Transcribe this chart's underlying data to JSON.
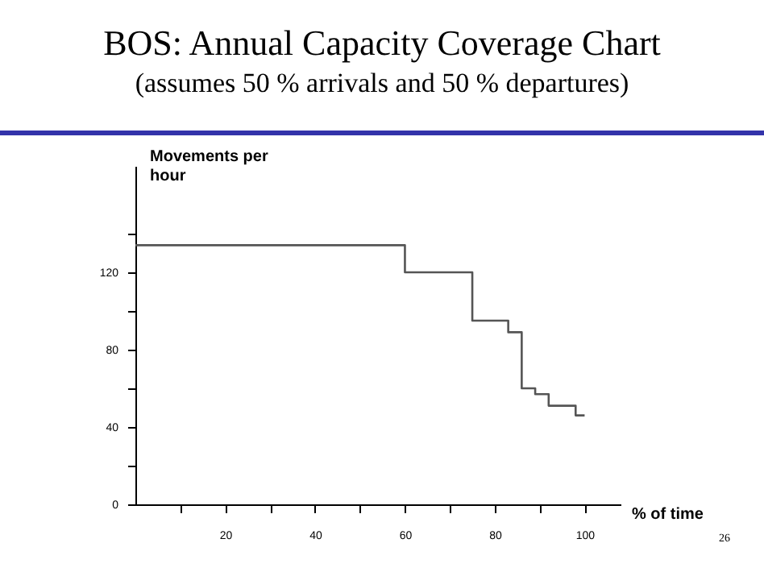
{
  "chart_data": {
    "type": "step",
    "title": "BOS: Annual Capacity Coverage Chart",
    "subtitle": "(assumes 50 % arrivals and 50 % departures)",
    "xlabel": "% of time",
    "ylabel": "Movements per hour",
    "x": [
      0,
      60,
      75,
      83,
      86,
      89,
      92,
      98,
      100
    ],
    "series": [
      {
        "color": "#555555",
        "values": [
          134,
          120,
          95,
          89,
          60,
          57,
          51,
          46,
          46
        ]
      }
    ],
    "xlim": [
      0,
      108
    ],
    "ylim": [
      0,
      175
    ],
    "xticks": [
      {
        "value": 10,
        "label": null
      },
      20,
      {
        "value": 30,
        "label": null
      },
      40,
      {
        "value": 50,
        "label": null
      },
      60,
      {
        "value": 70,
        "label": null
      },
      80,
      {
        "value": 90,
        "label": null
      },
      100
    ],
    "yticks": [
      0,
      {
        "value": 20,
        "label": null
      },
      40,
      {
        "value": 60,
        "label": null
      },
      80,
      {
        "value": 100,
        "label": null
      },
      120,
      {
        "value": 140,
        "label": null
      }
    ],
    "grid": false,
    "marker": "none",
    "line_style": "solid",
    "annotations": [
      "26"
    ]
  }
}
